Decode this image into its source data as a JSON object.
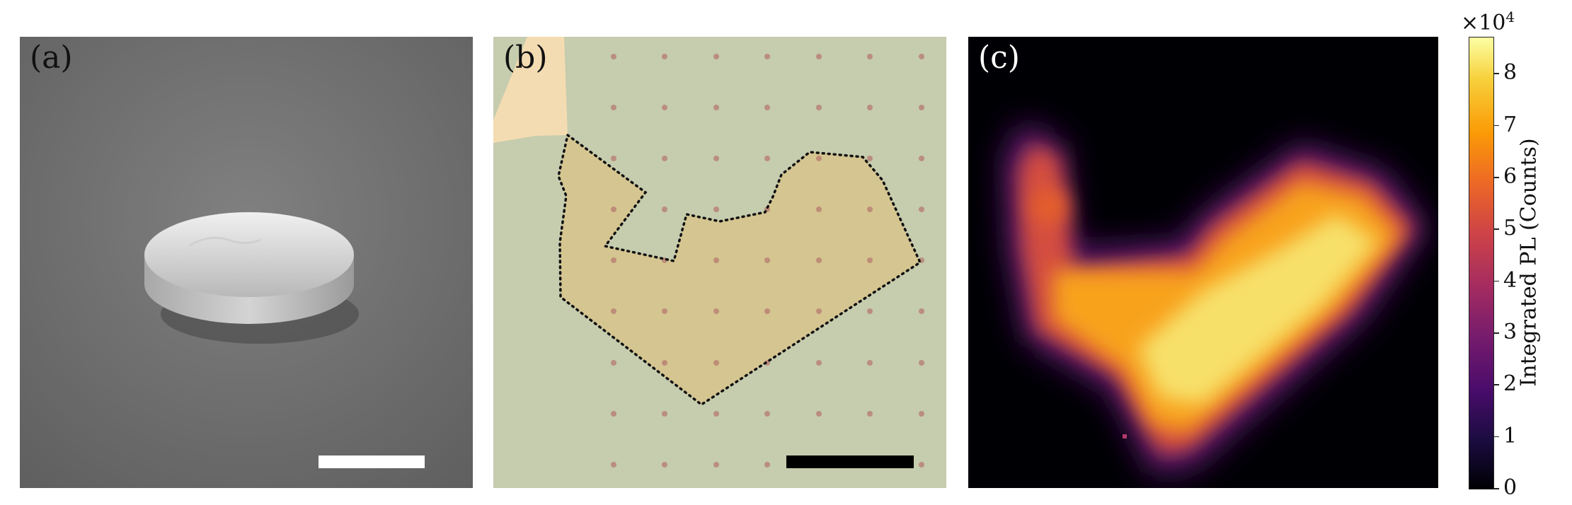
{
  "panels": {
    "a": {
      "label": "(a)",
      "scalebar_color": "#ffffff"
    },
    "b": {
      "label": "(b)",
      "scalebar_color": "#000000"
    },
    "c": {
      "label": "(c)"
    }
  },
  "colorbar": {
    "multiplier": "×10",
    "multiplier_exp": "4",
    "title": "Integrated PL (Counts)",
    "ticks": [
      "0",
      "1",
      "2",
      "3",
      "4",
      "5",
      "6",
      "7",
      "8"
    ],
    "colormap": "inferno"
  }
}
